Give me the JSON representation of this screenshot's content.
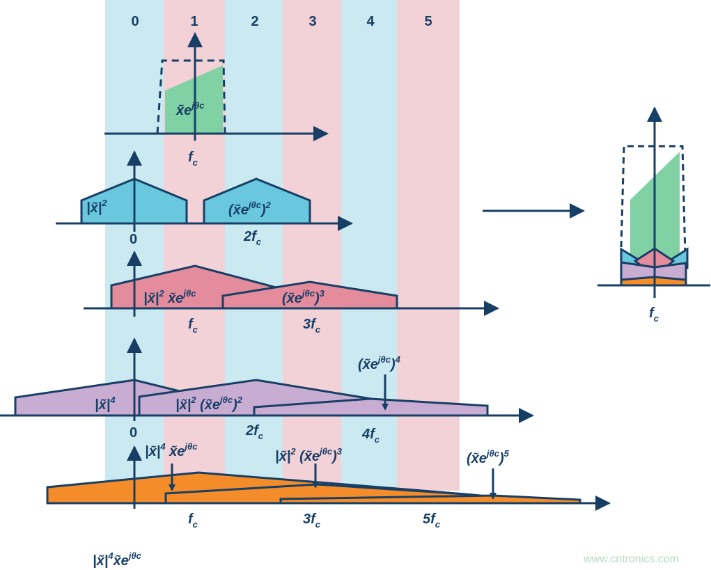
{
  "colors": {
    "band_blue": "#cbe9f0",
    "band_pink": "#f2d1d7",
    "navy": "#173f66",
    "green": "#80d2a5",
    "blue": "#69c8de",
    "pink": "#e48b9c",
    "purple": "#c9acd2",
    "orange": "#f48c2a",
    "watermark": "#b5dcc0"
  },
  "bands": [
    "0",
    "1",
    "2",
    "3",
    "4",
    "5"
  ],
  "labels": {
    "row1_signal": [
      {
        "t": "x̃e"
      },
      {
        "sup": "jθc"
      }
    ],
    "row1_fc": [
      {
        "t": "f"
      },
      {
        "sub": "c"
      }
    ],
    "row2_a": [
      {
        "t": "|x̃|"
      },
      {
        "sup": "2"
      }
    ],
    "row2_b": [
      {
        "t": "(x̃e"
      },
      {
        "sup": "jθc"
      },
      {
        "t": ")"
      },
      {
        "sup": "2"
      }
    ],
    "row2_t0": [
      {
        "t": "0"
      }
    ],
    "row2_t1": [
      {
        "t": "2f"
      },
      {
        "sub": "c"
      }
    ],
    "row3_a": [
      {
        "t": "|x̃|"
      },
      {
        "sup": "2"
      },
      {
        "t": " x̃e"
      },
      {
        "sup": "jθc"
      }
    ],
    "row3_b": [
      {
        "t": "(x̃e"
      },
      {
        "sup": "jθc"
      },
      {
        "t": ")"
      },
      {
        "sup": "3"
      }
    ],
    "row3_t0": [
      {
        "t": "f"
      },
      {
        "sub": "c"
      }
    ],
    "row3_t1": [
      {
        "t": "3f"
      },
      {
        "sub": "c"
      }
    ],
    "row4_a": [
      {
        "t": "|x̃|"
      },
      {
        "sup": "4"
      }
    ],
    "row4_b": [
      {
        "t": "|x̃|"
      },
      {
        "sup": "2"
      },
      {
        "t": " (x̃e"
      },
      {
        "sup": "jθc"
      },
      {
        "t": ")"
      },
      {
        "sup": "2"
      }
    ],
    "row4_c": [
      {
        "t": "(x̃e"
      },
      {
        "sup": "jθc"
      },
      {
        "t": ")"
      },
      {
        "sup": "4"
      }
    ],
    "row4_t0": [
      {
        "t": "0"
      }
    ],
    "row4_t1": [
      {
        "t": "2f"
      },
      {
        "sub": "c"
      }
    ],
    "row4_t2": [
      {
        "t": "4f"
      },
      {
        "sub": "c"
      }
    ],
    "row5_a": [
      {
        "t": "|x̃|"
      },
      {
        "sup": "4"
      },
      {
        "t": " x̃e"
      },
      {
        "sup": "jθc"
      }
    ],
    "row5_b": [
      {
        "t": "|x̃|"
      },
      {
        "sup": "2"
      },
      {
        "t": " (x̃e"
      },
      {
        "sup": "jθc"
      },
      {
        "t": ")"
      },
      {
        "sup": "3"
      }
    ],
    "row5_c": [
      {
        "t": "(x̃e"
      },
      {
        "sup": "jθc"
      },
      {
        "t": ")"
      },
      {
        "sup": "5"
      }
    ],
    "row5_t0": [
      {
        "t": "f"
      },
      {
        "sub": "c"
      }
    ],
    "row5_t1": [
      {
        "t": "3f"
      },
      {
        "sub": "c"
      }
    ],
    "row5_t2": [
      {
        "t": "5f"
      },
      {
        "sub": "c"
      }
    ],
    "bottom": [
      {
        "t": "|x̃|"
      },
      {
        "sup": "4"
      },
      {
        "t": "x̃e"
      },
      {
        "sup": "jθc"
      }
    ],
    "result_fc": [
      {
        "t": "f"
      },
      {
        "sub": "c"
      }
    ]
  },
  "watermark": "www.cntronics.com"
}
